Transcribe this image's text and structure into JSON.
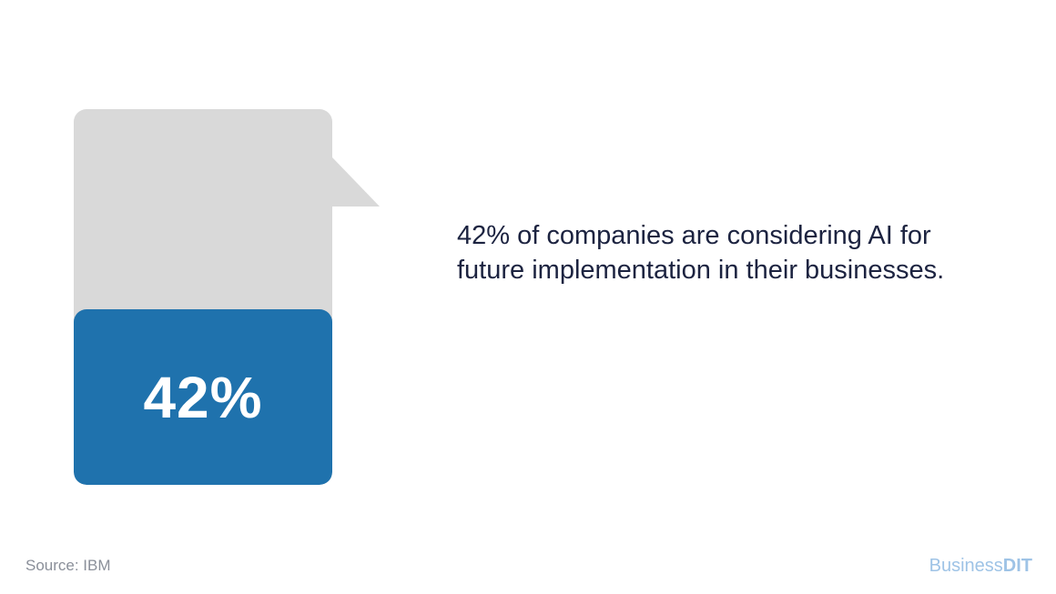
{
  "chart_data": {
    "type": "gauge",
    "value_percent": 42,
    "value_label": "42%",
    "colors": {
      "fill": "#1f72ad",
      "track": "#d9d9d9"
    }
  },
  "statement": "42% of companies are considering AI for future implementation in their businesses.",
  "source": "Source: IBM",
  "brand": {
    "part1": "Business",
    "part2": "DIT",
    "color": "#9ec3e6"
  }
}
